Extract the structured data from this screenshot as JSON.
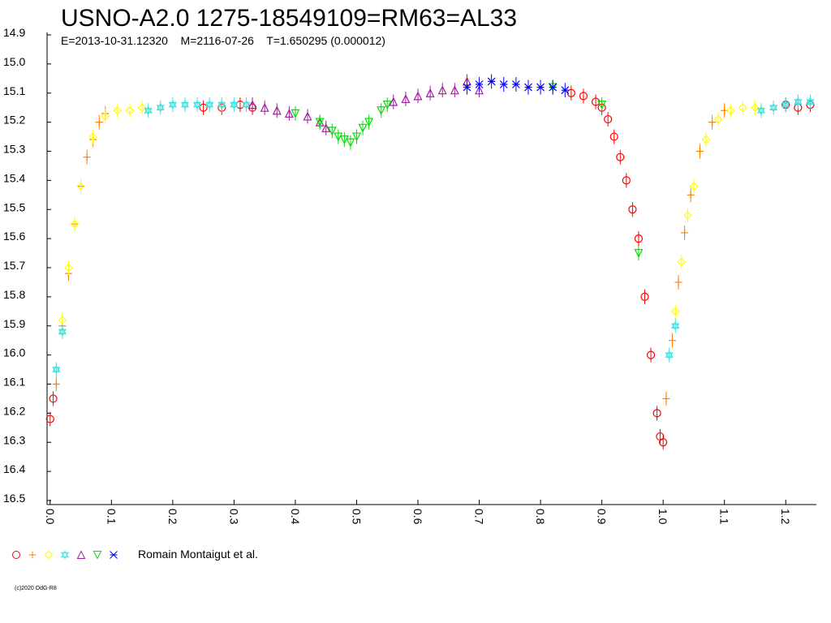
{
  "chart_data": {
    "type": "scatter",
    "title": "USNO-A2.0 1275-18549109=RM63=AL33",
    "subtitle": "E=2013-10-31.12320    M=2116-07-26    T=1.650295 (0.000012)",
    "legend_label": "Romain Montaigut et al.",
    "xlim": [
      -0.005,
      1.25
    ],
    "ylim": [
      14.9,
      16.5
    ],
    "y_inverted": true,
    "xticks": [
      {
        "value": 0,
        "label": "0.0"
      },
      0.1,
      0.2,
      0.3,
      0.4,
      0.5,
      0.6,
      0.7,
      0.8,
      0.9,
      {
        "value": 1,
        "label": "1.0"
      },
      1.1,
      1.2
    ],
    "yticks": [
      14.9,
      {
        "value": 15,
        "label": "15.0"
      },
      15.1,
      15.2,
      15.3,
      15.4,
      15.5,
      15.6,
      15.7,
      15.8,
      15.9,
      {
        "value": 16,
        "label": "16.0"
      },
      16.1,
      16.2,
      16.3,
      16.4,
      16.5
    ],
    "series": [
      {
        "color": "#ff0000",
        "marker": "circle",
        "x": [
          0,
          0.005,
          0.25,
          0.28,
          0.31,
          0.33,
          0.85,
          0.87,
          0.89,
          0.9,
          0.91,
          0.92,
          0.93,
          0.94,
          0.95,
          0.96,
          0.97,
          0.98,
          0.99,
          0.995,
          1.0,
          1.2,
          1.22,
          1.24
        ],
        "values": [
          16.22,
          16.15,
          15.15,
          15.15,
          15.14,
          15.15,
          15.1,
          15.11,
          15.13,
          15.15,
          15.19,
          15.25,
          15.32,
          15.4,
          15.5,
          15.6,
          15.8,
          16.0,
          16.2,
          16.28,
          16.3,
          15.14,
          15.15,
          15.14
        ]
      },
      {
        "color": "#ff8000",
        "marker": "plus",
        "x": [
          0.01,
          0.02,
          0.03,
          0.04,
          0.05,
          0.06,
          0.07,
          0.08,
          0.09,
          1.005,
          1.015,
          1.025,
          1.035,
          1.045,
          1.06,
          1.08,
          1.1
        ],
        "values": [
          16.1,
          15.9,
          15.72,
          15.55,
          15.42,
          15.32,
          15.26,
          15.2,
          15.17,
          16.15,
          15.95,
          15.75,
          15.58,
          15.45,
          15.3,
          15.2,
          15.16
        ]
      },
      {
        "color": "#ffff00",
        "marker": "diamond",
        "x": [
          0.02,
          0.03,
          0.04,
          0.05,
          0.07,
          0.09,
          0.11,
          0.13,
          0.15,
          1.02,
          1.03,
          1.04,
          1.05,
          1.07,
          1.09,
          1.11,
          1.13,
          1.15
        ],
        "values": [
          15.88,
          15.7,
          15.55,
          15.42,
          15.25,
          15.18,
          15.16,
          15.16,
          15.15,
          15.85,
          15.68,
          15.52,
          15.42,
          15.26,
          15.19,
          15.16,
          15.15,
          15.15
        ]
      },
      {
        "color": "#40e0e0",
        "marker": "star",
        "x": [
          0.01,
          0.02,
          0.16,
          0.18,
          0.2,
          0.22,
          0.24,
          0.26,
          0.28,
          0.3,
          0.32,
          1.01,
          1.02,
          1.16,
          1.18,
          1.2,
          1.22,
          1.24
        ],
        "values": [
          16.05,
          15.92,
          15.16,
          15.15,
          15.14,
          15.14,
          15.14,
          15.14,
          15.14,
          15.14,
          15.14,
          16.0,
          15.9,
          15.16,
          15.15,
          15.14,
          15.13,
          15.13
        ]
      },
      {
        "color": "#a0209f",
        "marker": "triangle",
        "x": [
          0.33,
          0.35,
          0.37,
          0.39,
          0.42,
          0.44,
          0.45,
          0.56,
          0.58,
          0.6,
          0.62,
          0.64,
          0.66,
          0.68,
          0.7
        ],
        "values": [
          15.14,
          15.15,
          15.16,
          15.17,
          15.18,
          15.2,
          15.22,
          15.13,
          15.12,
          15.11,
          15.1,
          15.09,
          15.09,
          15.06,
          15.09
        ]
      },
      {
        "color": "#00e000",
        "marker": "tridown",
        "x": [
          0.4,
          0.44,
          0.46,
          0.47,
          0.48,
          0.49,
          0.5,
          0.51,
          0.52,
          0.54,
          0.55,
          0.82,
          0.9,
          0.96
        ],
        "values": [
          15.17,
          15.2,
          15.23,
          15.25,
          15.26,
          15.27,
          15.25,
          15.22,
          15.2,
          15.16,
          15.14,
          15.08,
          15.14,
          15.65
        ]
      },
      {
        "color": "#0000ff",
        "marker": "cross",
        "x": [
          0.68,
          0.7,
          0.72,
          0.74,
          0.76,
          0.78,
          0.8,
          0.82,
          0.84
        ],
        "values": [
          15.08,
          15.07,
          15.06,
          15.07,
          15.07,
          15.08,
          15.08,
          15.08,
          15.09
        ]
      }
    ]
  },
  "footer": "(c)2020 OdG-R8"
}
